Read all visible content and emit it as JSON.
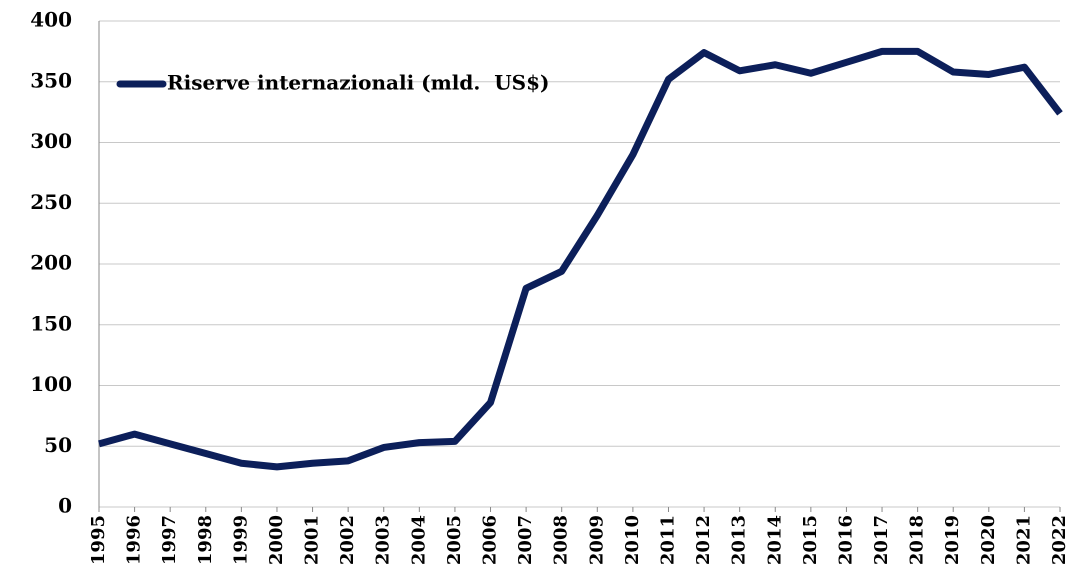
{
  "chart_data": {
    "type": "line",
    "x": [
      "1995",
      "1996",
      "1997",
      "1998",
      "1999",
      "2000",
      "2001",
      "2002",
      "2003",
      "2004",
      "2005",
      "2006",
      "2007",
      "2008",
      "2009",
      "2010",
      "2011",
      "2012",
      "2013",
      "2014",
      "2015",
      "2016",
      "2017",
      "2018",
      "2019",
      "2020",
      "2021",
      "2022"
    ],
    "series": [
      {
        "name": "Riserve internazionali (mld.  US$)",
        "color": "#0c1f5a",
        "values": [
          52,
          60,
          52,
          44,
          36,
          33,
          36,
          38,
          49,
          53,
          54,
          86,
          180,
          194,
          240,
          290,
          352,
          374,
          359,
          364,
          357,
          366,
          375,
          375,
          358,
          356,
          362,
          324
        ]
      }
    ],
    "ylim": [
      0,
      400
    ],
    "yticks": [
      0,
      50,
      100,
      150,
      200,
      250,
      300,
      350,
      400
    ],
    "grid": true,
    "legend": "upper left"
  }
}
